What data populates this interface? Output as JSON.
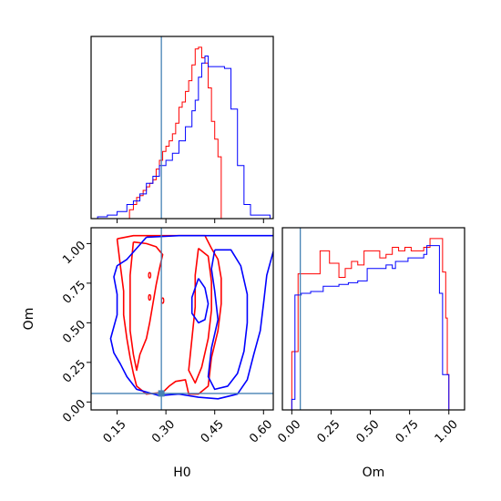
{
  "chart_data": {
    "type": "corner",
    "parameters": [
      "H0",
      "Om"
    ],
    "truth": {
      "H0": 0.286,
      "Om": 0.054
    },
    "colors": {
      "series_a": "#ff0000",
      "series_b": "#0000ff",
      "truth": "#4682b4"
    },
    "panels": [
      {
        "id": "hist-H0",
        "type": "histogram",
        "xlim": [
          0.07,
          0.63
        ],
        "xticks": [
          0.15,
          0.3,
          0.45,
          0.6
        ],
        "show_tick_labels": false,
        "series": [
          {
            "color": "red",
            "bins": [
              [
                0.17,
                0.0
              ],
              [
                0.188,
                0.05
              ],
              [
                0.2,
                0.08
              ],
              [
                0.21,
                0.12
              ],
              [
                0.22,
                0.13
              ],
              [
                0.23,
                0.16
              ],
              [
                0.24,
                0.18
              ],
              [
                0.25,
                0.2
              ],
              [
                0.26,
                0.22
              ],
              [
                0.27,
                0.28
              ],
              [
                0.28,
                0.33
              ],
              [
                0.29,
                0.38
              ],
              [
                0.3,
                0.41
              ],
              [
                0.31,
                0.44
              ],
              [
                0.32,
                0.48
              ],
              [
                0.33,
                0.54
              ],
              [
                0.34,
                0.63
              ],
              [
                0.35,
                0.66
              ],
              [
                0.36,
                0.72
              ],
              [
                0.37,
                0.78
              ],
              [
                0.38,
                0.87
              ],
              [
                0.39,
                0.96
              ],
              [
                0.4,
                0.97
              ],
              [
                0.41,
                0.91
              ],
              [
                0.42,
                0.88
              ],
              [
                0.43,
                0.74
              ],
              [
                0.44,
                0.55
              ],
              [
                0.45,
                0.45
              ],
              [
                0.46,
                0.35
              ],
              [
                0.47,
                0.0
              ]
            ]
          },
          {
            "color": "blue",
            "bins": [
              [
                0.08,
                0.0
              ],
              [
                0.09,
                0.01
              ],
              [
                0.12,
                0.02
              ],
              [
                0.15,
                0.04
              ],
              [
                0.18,
                0.08
              ],
              [
                0.2,
                0.1
              ],
              [
                0.22,
                0.14
              ],
              [
                0.24,
                0.2
              ],
              [
                0.26,
                0.24
              ],
              [
                0.28,
                0.3
              ],
              [
                0.3,
                0.33
              ],
              [
                0.32,
                0.37
              ],
              [
                0.34,
                0.44
              ],
              [
                0.36,
                0.52
              ],
              [
                0.38,
                0.61
              ],
              [
                0.39,
                0.67
              ],
              [
                0.4,
                0.8
              ],
              [
                0.41,
                0.88
              ],
              [
                0.42,
                0.92
              ],
              [
                0.43,
                0.86
              ],
              [
                0.44,
                0.86
              ],
              [
                0.45,
                0.86
              ],
              [
                0.47,
                0.86
              ],
              [
                0.48,
                0.85
              ],
              [
                0.5,
                0.62
              ],
              [
                0.52,
                0.3
              ],
              [
                0.54,
                0.08
              ],
              [
                0.56,
                0.02
              ],
              [
                0.58,
                0.02
              ],
              [
                0.6,
                0.02
              ],
              [
                0.62,
                0.0
              ]
            ]
          }
        ]
      },
      {
        "id": "joint-H0-Om",
        "type": "contour",
        "xlim": [
          0.07,
          0.63
        ],
        "ylim": [
          -0.05,
          1.1
        ],
        "xticks": [
          0.15,
          0.3,
          0.45,
          0.6
        ],
        "yticks": [
          0.0,
          0.25,
          0.5,
          0.75,
          1.0
        ],
        "xlabel": "H0",
        "ylabel": "Om",
        "contours": [
          {
            "color": "red",
            "points": [
              [
                0.15,
                1.03
              ],
              [
                0.2,
                1.05
              ],
              [
                0.26,
                1.05
              ],
              [
                0.31,
                1.05
              ],
              [
                0.38,
                1.05
              ],
              [
                0.42,
                1.05
              ],
              [
                0.44,
                0.97
              ],
              [
                0.46,
                0.9
              ],
              [
                0.47,
                0.78
              ],
              [
                0.47,
                0.62
              ],
              [
                0.46,
                0.45
              ],
              [
                0.44,
                0.28
              ],
              [
                0.43,
                0.1
              ],
              [
                0.4,
                0.05
              ],
              [
                0.37,
                0.05
              ],
              [
                0.36,
                0.14
              ],
              [
                0.33,
                0.13
              ],
              [
                0.31,
                0.1
              ],
              [
                0.29,
                0.06
              ],
              [
                0.24,
                0.05
              ],
              [
                0.21,
                0.1
              ],
              [
                0.2,
                0.18
              ],
              [
                0.19,
                0.28
              ],
              [
                0.18,
                0.4
              ],
              [
                0.17,
                0.55
              ],
              [
                0.17,
                0.7
              ],
              [
                0.16,
                0.86
              ],
              [
                0.15,
                1.03
              ]
            ]
          },
          {
            "color": "red",
            "points": [
              [
                0.2,
                1.01
              ],
              [
                0.24,
                1.0
              ],
              [
                0.27,
                0.98
              ],
              [
                0.29,
                0.93
              ],
              [
                0.28,
                0.84
              ],
              [
                0.27,
                0.74
              ],
              [
                0.26,
                0.62
              ],
              [
                0.25,
                0.5
              ],
              [
                0.24,
                0.4
              ],
              [
                0.22,
                0.3
              ],
              [
                0.21,
                0.2
              ],
              [
                0.2,
                0.3
              ],
              [
                0.19,
                0.45
              ],
              [
                0.19,
                0.6
              ],
              [
                0.19,
                0.8
              ],
              [
                0.2,
                1.01
              ]
            ]
          },
          {
            "color": "red",
            "points": [
              [
                0.4,
                0.97
              ],
              [
                0.43,
                0.92
              ],
              [
                0.44,
                0.76
              ],
              [
                0.44,
                0.58
              ],
              [
                0.43,
                0.4
              ],
              [
                0.41,
                0.22
              ],
              [
                0.39,
                0.12
              ],
              [
                0.37,
                0.2
              ],
              [
                0.38,
                0.4
              ],
              [
                0.39,
                0.6
              ],
              [
                0.39,
                0.8
              ],
              [
                0.4,
                0.97
              ]
            ]
          },
          {
            "color": "blue",
            "points": [
              [
                0.24,
                1.04
              ],
              [
                0.34,
                1.05
              ],
              [
                0.44,
                1.05
              ],
              [
                0.52,
                1.05
              ],
              [
                0.6,
                1.05
              ],
              [
                0.63,
                1.05
              ]
            ]
          },
          {
            "color": "blue",
            "points": [
              [
                0.63,
                0.95
              ],
              [
                0.61,
                0.8
              ],
              [
                0.6,
                0.62
              ],
              [
                0.59,
                0.45
              ],
              [
                0.57,
                0.3
              ],
              [
                0.55,
                0.14
              ],
              [
                0.52,
                0.05
              ],
              [
                0.46,
                0.02
              ],
              [
                0.4,
                0.03
              ],
              [
                0.34,
                0.05
              ],
              [
                0.28,
                0.04
              ],
              [
                0.21,
                0.08
              ],
              [
                0.18,
                0.16
              ],
              [
                0.16,
                0.24
              ],
              [
                0.14,
                0.31
              ],
              [
                0.13,
                0.4
              ],
              [
                0.15,
                0.55
              ],
              [
                0.15,
                0.68
              ],
              [
                0.14,
                0.79
              ],
              [
                0.15,
                0.86
              ],
              [
                0.18,
                0.9
              ],
              [
                0.21,
                0.97
              ],
              [
                0.24,
                1.04
              ]
            ]
          },
          {
            "color": "blue",
            "points": [
              [
                0.45,
                0.96
              ],
              [
                0.5,
                0.96
              ],
              [
                0.53,
                0.86
              ],
              [
                0.55,
                0.68
              ],
              [
                0.55,
                0.5
              ],
              [
                0.54,
                0.32
              ],
              [
                0.52,
                0.18
              ],
              [
                0.49,
                0.1
              ],
              [
                0.45,
                0.08
              ],
              [
                0.43,
                0.16
              ],
              [
                0.44,
                0.34
              ],
              [
                0.46,
                0.52
              ],
              [
                0.45,
                0.7
              ],
              [
                0.44,
                0.84
              ],
              [
                0.45,
                0.96
              ]
            ]
          },
          {
            "color": "blue",
            "points": [
              [
                0.4,
                0.78
              ],
              [
                0.42,
                0.72
              ],
              [
                0.43,
                0.62
              ],
              [
                0.42,
                0.52
              ],
              [
                0.4,
                0.5
              ],
              [
                0.38,
                0.56
              ],
              [
                0.38,
                0.66
              ],
              [
                0.4,
                0.78
              ]
            ]
          }
        ]
      },
      {
        "id": "hist-Om",
        "type": "histogram",
        "xlim": [
          -0.06,
          1.1
        ],
        "xticks": [
          0.0,
          0.25,
          0.5,
          0.75,
          1.0
        ],
        "xlabel": "Om",
        "series": [
          {
            "color": "red",
            "bins": [
              [
                0.0,
                0.0
              ],
              [
                0.0,
                0.33
              ],
              [
                0.04,
                0.77
              ],
              [
                0.12,
                0.77
              ],
              [
                0.18,
                0.9
              ],
              [
                0.22,
                0.9
              ],
              [
                0.24,
                0.83
              ],
              [
                0.3,
                0.75
              ],
              [
                0.34,
                0.8
              ],
              [
                0.38,
                0.84
              ],
              [
                0.42,
                0.82
              ],
              [
                0.46,
                0.9
              ],
              [
                0.52,
                0.9
              ],
              [
                0.56,
                0.86
              ],
              [
                0.6,
                0.88
              ],
              [
                0.64,
                0.92
              ],
              [
                0.68,
                0.9
              ],
              [
                0.72,
                0.92
              ],
              [
                0.76,
                0.9
              ],
              [
                0.8,
                0.9
              ],
              [
                0.84,
                0.92
              ],
              [
                0.88,
                0.97
              ],
              [
                0.92,
                0.97
              ],
              [
                0.96,
                0.78
              ],
              [
                0.98,
                0.52
              ],
              [
                0.99,
                0.2
              ],
              [
                1.0,
                0.0
              ]
            ]
          },
          {
            "color": "blue",
            "points_note": "",
            "bins": [
              [
                -0.06,
                0.0
              ],
              [
                0.0,
                0.06
              ],
              [
                0.02,
                0.65
              ],
              [
                0.06,
                0.66
              ],
              [
                0.12,
                0.67
              ],
              [
                0.2,
                0.7
              ],
              [
                0.26,
                0.7
              ],
              [
                0.3,
                0.71
              ],
              [
                0.36,
                0.72
              ],
              [
                0.42,
                0.73
              ],
              [
                0.48,
                0.8
              ],
              [
                0.52,
                0.8
              ],
              [
                0.56,
                0.8
              ],
              [
                0.6,
                0.82
              ],
              [
                0.64,
                0.8
              ],
              [
                0.66,
                0.84
              ],
              [
                0.7,
                0.84
              ],
              [
                0.74,
                0.86
              ],
              [
                0.78,
                0.86
              ],
              [
                0.82,
                0.86
              ],
              [
                0.84,
                0.88
              ],
              [
                0.86,
                0.93
              ],
              [
                0.9,
                0.93
              ],
              [
                0.94,
                0.66
              ],
              [
                0.96,
                0.2
              ],
              [
                1.0,
                0.0
              ],
              [
                1.08,
                0.0
              ]
            ]
          }
        ]
      }
    ]
  }
}
